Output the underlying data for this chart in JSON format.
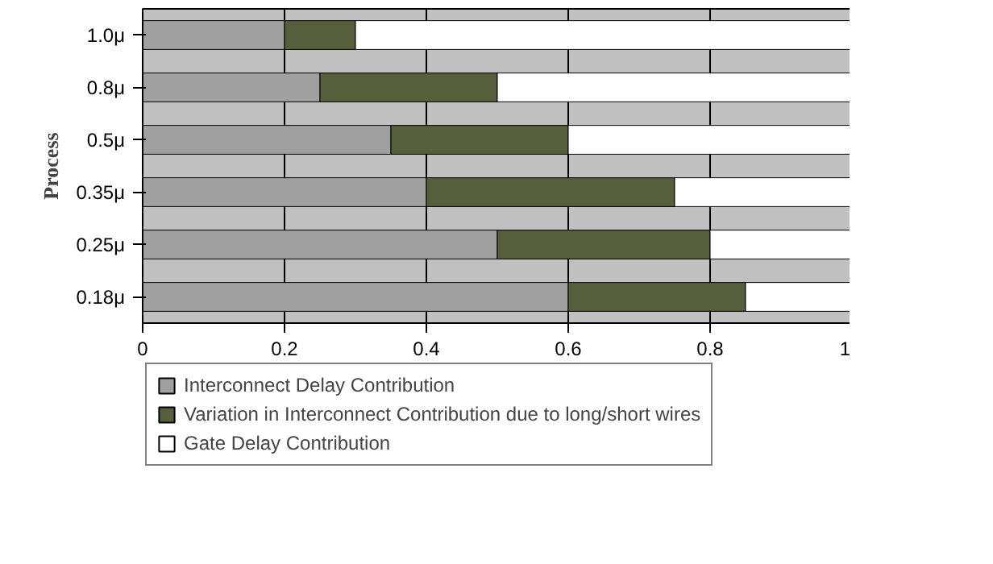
{
  "chart_data": {
    "type": "bar",
    "orientation": "horizontal",
    "stacked": true,
    "ylabel": "Process",
    "categories": [
      "1.0μ",
      "0.8μ",
      "0.5μ",
      "0.35μ",
      "0.25μ",
      "0.18μ"
    ],
    "series": [
      {
        "name": "Interconnect Delay Contribution",
        "color": "#a0a0a0",
        "values": [
          0.2,
          0.25,
          0.35,
          0.4,
          0.5,
          0.6
        ]
      },
      {
        "name": "Variation in Interconnect Contribution due to long/short wires",
        "color": "#555f3c",
        "values": [
          0.1,
          0.25,
          0.25,
          0.35,
          0.3,
          0.25
        ]
      },
      {
        "name": "Gate Delay Contribution",
        "color": "#ffffff",
        "values": [
          0.7,
          0.5,
          0.4,
          0.25,
          0.2,
          0.15
        ]
      }
    ],
    "xlim": [
      0,
      1
    ],
    "xticks": [
      0,
      0.2,
      0.4,
      0.6,
      0.8,
      1
    ],
    "grid": "x",
    "legend": "bottom"
  }
}
